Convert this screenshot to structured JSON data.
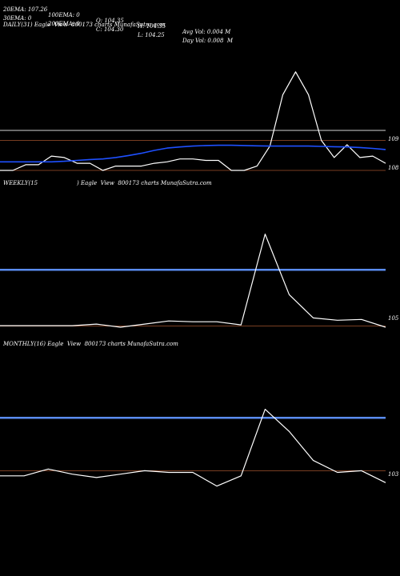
{
  "header": {
    "row1": [
      {
        "text": "20EMA: 107.26"
      },
      {
        "text": "100EMA: 0"
      },
      {
        "text": "O: 104.35"
      },
      {
        "text": "H: 104.35"
      },
      {
        "text": "Avg Vol: 0.004 M"
      }
    ],
    "row2": [
      {
        "text": "30EMA: 0"
      },
      {
        "text": "200EMA: 0"
      },
      {
        "text": "C: 104.30"
      },
      {
        "text": "L: 104.25"
      },
      {
        "text": "Day Vol: 0.008  M"
      }
    ]
  },
  "colors": {
    "background": "#000000",
    "price_line": "#ffffff",
    "ema_line": "#1e50ff",
    "ref_line_gray": "#aaaaaa",
    "ref_line_blue": "#5a8cf0",
    "ref_line_brown": "#a0522d"
  },
  "chart_data": [
    {
      "type": "line",
      "title": "DAILY(31) Eagle  View  800173 charts MunafaSutra.com",
      "y_ticks": [
        {
          "label": "109",
          "value": 109
        },
        {
          "label": "108",
          "value": 108
        }
      ],
      "ylim": [
        107.9,
        111.4
      ],
      "reference_lines": [
        {
          "value": 109.3,
          "color": "gray"
        },
        {
          "value": 108.95,
          "color": "brown"
        },
        {
          "value": 107.9,
          "color": "brown"
        }
      ],
      "series": [
        {
          "role": "price",
          "values": [
            107.9,
            107.9,
            108.1,
            108.1,
            108.4,
            108.35,
            108.15,
            108.15,
            107.9,
            108.05,
            108.05,
            108.05,
            108.15,
            108.2,
            108.3,
            108.3,
            108.25,
            108.25,
            107.9,
            107.9,
            108.05,
            108.75,
            110.55,
            111.35,
            110.55,
            108.95,
            108.35,
            108.8,
            108.35,
            108.4,
            108.15
          ]
        },
        {
          "role": "ema",
          "values": [
            108.2,
            108.2,
            108.2,
            108.2,
            108.2,
            108.22,
            108.25,
            108.28,
            108.3,
            108.35,
            108.42,
            108.5,
            108.6,
            108.68,
            108.72,
            108.75,
            108.77,
            108.78,
            108.78,
            108.77,
            108.76,
            108.75,
            108.75,
            108.75,
            108.75,
            108.74,
            108.73,
            108.72,
            108.7,
            108.67,
            108.63
          ]
        }
      ]
    },
    {
      "type": "line",
      "title": "WEEKLY(15                      ) Eagle  View  800173 charts MunafaSutra.com",
      "y_ticks": [
        {
          "label": "105",
          "value": 105
        }
      ],
      "ylim": [
        104.4,
        111
      ],
      "reference_lines": [
        {
          "value": 108.1,
          "color": "blue"
        },
        {
          "value": 104.47,
          "color": "brown"
        }
      ],
      "series": [
        {
          "role": "price",
          "values": [
            104.5,
            104.5,
            104.5,
            104.5,
            104.6,
            104.4,
            104.6,
            104.8,
            104.75,
            104.75,
            104.55,
            110.4,
            106.5,
            105,
            104.85,
            104.9,
            104.4
          ]
        }
      ]
    },
    {
      "type": "line",
      "title": "MONTHLY(16) Eagle  View  800173 charts MunafaSutra.com",
      "y_ticks": [
        {
          "label": "103",
          "value": 103
        }
      ],
      "ylim": [
        102,
        108
      ],
      "reference_lines": [
        {
          "value": 106.3,
          "color": "blue"
        },
        {
          "value": 103.2,
          "color": "brown"
        }
      ],
      "series": [
        {
          "role": "price",
          "values": [
            102.9,
            102.9,
            103.3,
            103,
            102.8,
            103,
            103.2,
            103.1,
            103.1,
            102.3,
            102.9,
            106.8,
            105.5,
            103.8,
            103.1,
            103.2,
            102.5
          ]
        }
      ]
    }
  ]
}
